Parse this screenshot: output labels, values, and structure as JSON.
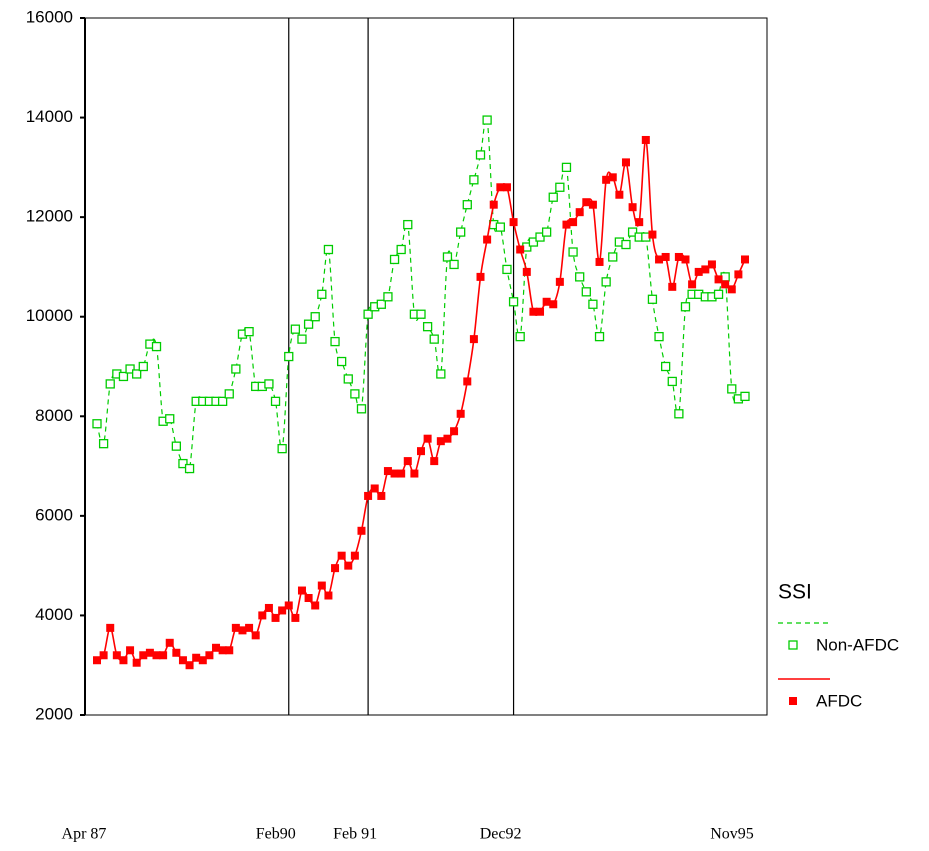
{
  "chart_data": {
    "type": "line",
    "categories": [
      "Apr 87",
      null,
      null,
      null,
      null,
      null,
      null,
      null,
      null,
      null,
      null,
      null,
      null,
      null,
      null,
      null,
      null,
      null,
      null,
      null,
      null,
      null,
      null,
      null,
      null,
      null,
      null,
      null,
      null,
      "Feb90",
      null,
      null,
      null,
      null,
      null,
      null,
      null,
      null,
      null,
      null,
      null,
      "Feb 91",
      null,
      null,
      null,
      null,
      null,
      null,
      null,
      null,
      null,
      null,
      null,
      null,
      null,
      null,
      null,
      null,
      null,
      null,
      null,
      null,
      null,
      "Dec92",
      null,
      null,
      null,
      null,
      null,
      null,
      null,
      null,
      null,
      null,
      null,
      null,
      null,
      null,
      null,
      null,
      null,
      null,
      null,
      null,
      null,
      null,
      null,
      null,
      null,
      null,
      null,
      null,
      null,
      null,
      null,
      null,
      null,
      null,
      "Nov95"
    ],
    "series": [
      {
        "name": "Non-AFDC",
        "color": "#00cc00",
        "values": [
          7850,
          7450,
          8650,
          8850,
          8800,
          8950,
          8850,
          9000,
          9450,
          9400,
          7900,
          7950,
          7400,
          7050,
          6950,
          8300,
          8300,
          8300,
          8300,
          8300,
          8450,
          8950,
          9650,
          9700,
          8600,
          8600,
          8650,
          8300,
          7350,
          9200,
          9750,
          9550,
          9850,
          10000,
          10450,
          11350,
          9500,
          9100,
          8750,
          8450,
          8150,
          10050,
          10200,
          10250,
          10400,
          11150,
          11350,
          11850,
          10050,
          10050,
          9800,
          9550,
          8850,
          11200,
          11050,
          11700,
          12250,
          12750,
          13250,
          13950,
          11850,
          11800,
          10950,
          10300,
          9600,
          11400,
          11500,
          11600,
          11700,
          12400,
          12600,
          13000,
          11300,
          10800,
          10500,
          10250,
          9600,
          10700,
          11200,
          11500,
          11450,
          11700,
          11600,
          11600,
          10350,
          9600,
          9000,
          8700,
          8050,
          10200,
          10450,
          10450,
          10400,
          10400,
          10450,
          10800,
          8550,
          8350,
          8400
        ]
      },
      {
        "name": "AFDC",
        "color": "#ff0000",
        "values": [
          3100,
          3200,
          3750,
          3200,
          3100,
          3300,
          3050,
          3200,
          3250,
          3200,
          3200,
          3450,
          3250,
          3100,
          3000,
          3150,
          3100,
          3200,
          3350,
          3300,
          3300,
          3750,
          3700,
          3750,
          3600,
          4000,
          4150,
          3950,
          4100,
          4200,
          3950,
          4500,
          4350,
          4200,
          4600,
          4400,
          4950,
          5200,
          5000,
          5200,
          5700,
          6400,
          6550,
          6400,
          6900,
          6850,
          6850,
          7100,
          6850,
          7300,
          7550,
          7100,
          7500,
          7550,
          7700,
          8050,
          8700,
          9550,
          10800,
          11550,
          12250,
          12600,
          12600,
          11900,
          11350,
          10900,
          10100,
          10100,
          10300,
          10250,
          10700,
          11850,
          11900,
          12100,
          12300,
          12250,
          11100,
          12750,
          12800,
          12450,
          13100,
          12200,
          11900,
          13550,
          11650,
          11150,
          11200,
          10600,
          11200,
          11150,
          10650,
          10900,
          10950,
          11050,
          10750,
          10650,
          10550,
          10850,
          11150
        ]
      }
    ],
    "legend_title": "SSI",
    "ylim": [
      2000,
      16000
    ],
    "yticks": [
      2000,
      4000,
      6000,
      8000,
      10000,
      12000,
      14000,
      16000
    ]
  }
}
